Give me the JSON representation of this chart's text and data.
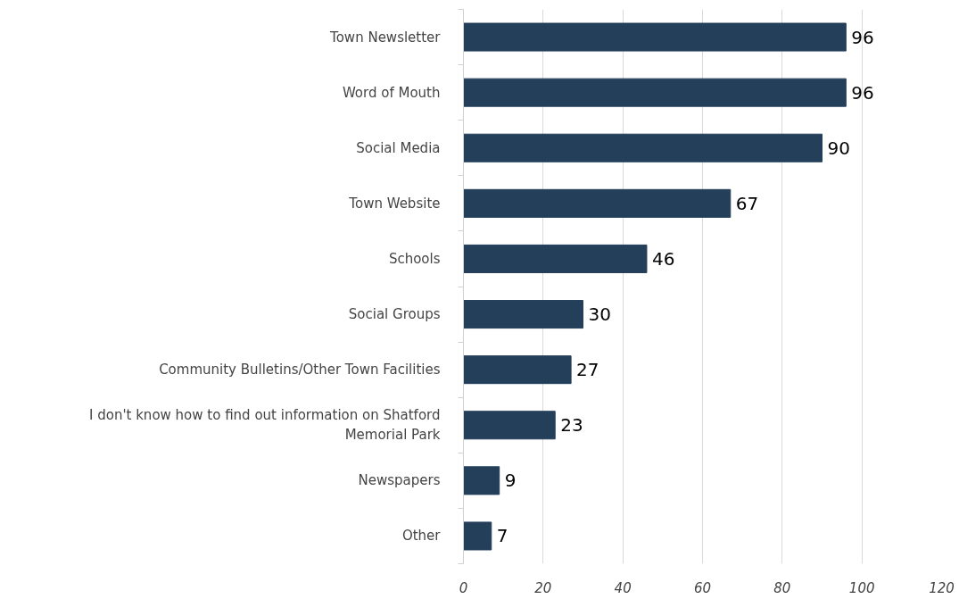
{
  "chart_data": {
    "type": "bar",
    "orientation": "horizontal",
    "categories": [
      "Town Newsletter",
      "Word of Mouth",
      "Social Media",
      "Town Website",
      "Schools",
      "Social Groups",
      "Community Bulletins/Other Town Facilities",
      "I don't know how to find out information on Shatford Memorial Park",
      "Newspapers",
      "Other"
    ],
    "values": [
      96,
      96,
      90,
      67,
      46,
      30,
      27,
      23,
      9,
      7
    ],
    "color": "#243f5a",
    "xlim": [
      0,
      120
    ],
    "xticks": [
      0,
      20,
      40,
      60,
      80,
      100,
      120
    ],
    "grid": "x",
    "data_labels": true
  }
}
